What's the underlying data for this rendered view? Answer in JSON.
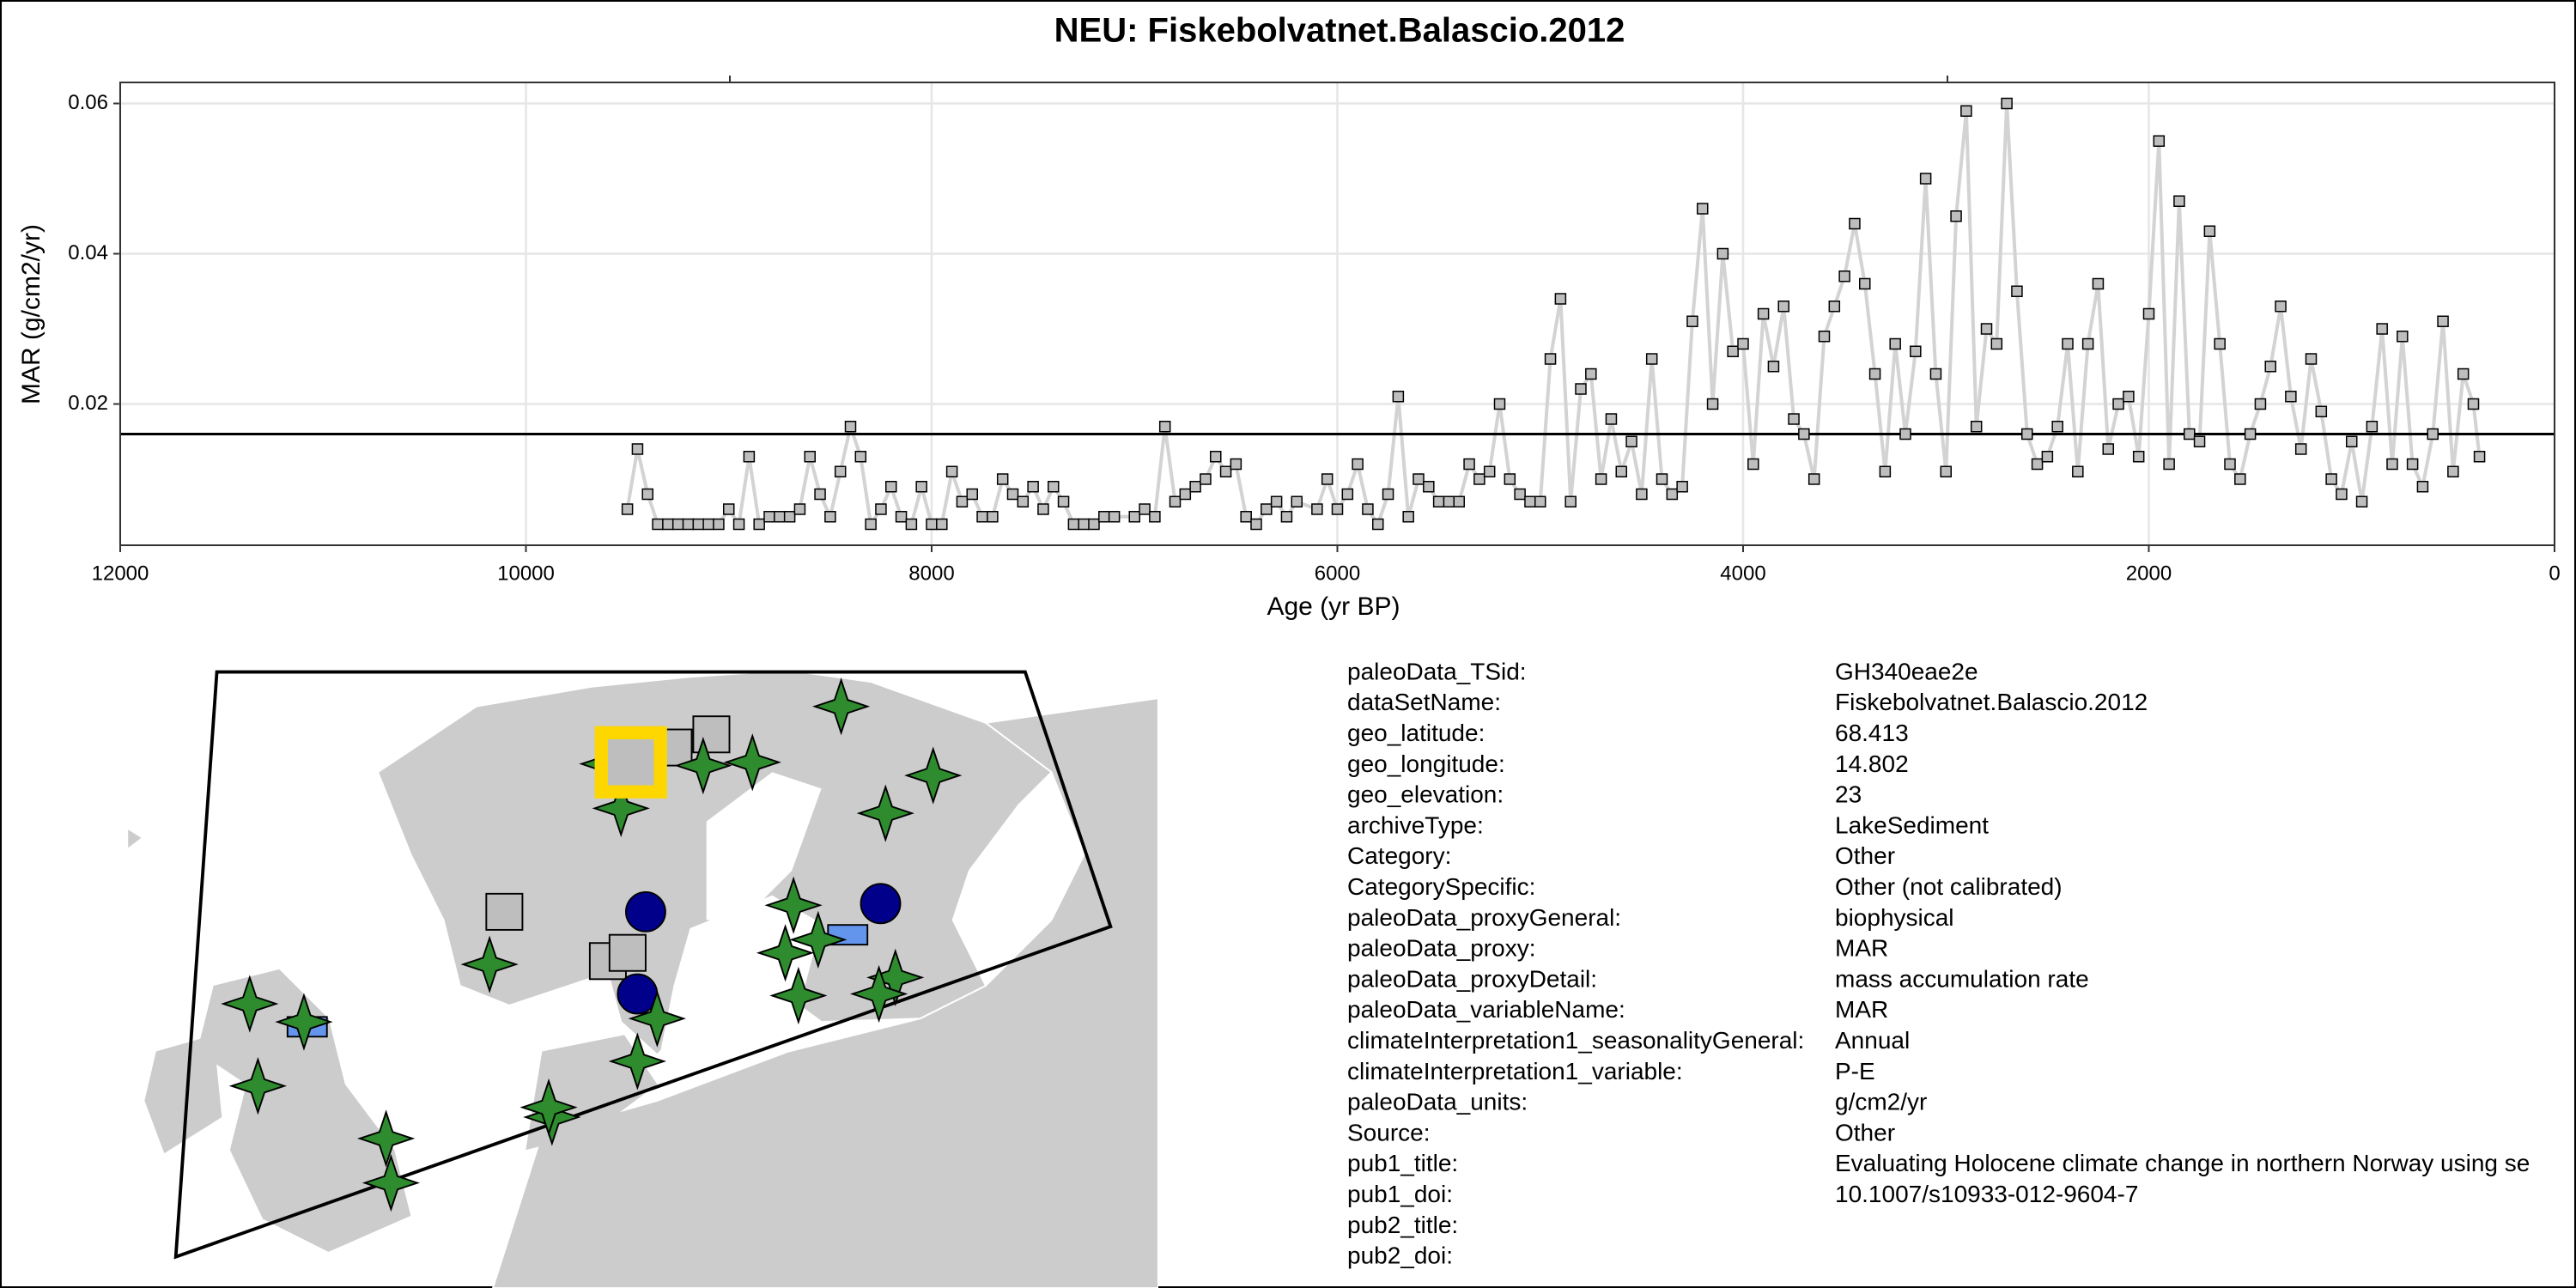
{
  "chart_data": {
    "type": "line",
    "title": "NEU: Fiskebolvatnet.Balascio.2012",
    "x_label": "Age (yr BP)",
    "y_label": "MAR (g/cm2/yr)",
    "xlim": [
      12000,
      0
    ],
    "xticks": [
      12000,
      10000,
      8000,
      6000,
      4000,
      2000,
      0
    ],
    "ylim": [
      0.0012,
      0.0628
    ],
    "yticks": [
      0.02,
      0.04,
      0.06
    ],
    "grid": true,
    "color": "#d3d3d3",
    "marker_color": "#bebebe",
    "hline": 0.016,
    "x": [
      9500,
      9450,
      9400,
      9350,
      9300,
      9250,
      9200,
      9150,
      9100,
      9050,
      9000,
      8950,
      8900,
      8850,
      8800,
      8750,
      8700,
      8650,
      8600,
      8550,
      8500,
      8450,
      8400,
      8350,
      8300,
      8250,
      8200,
      8150,
      8100,
      8050,
      8000,
      7950,
      7900,
      7850,
      7800,
      7750,
      7700,
      7650,
      7600,
      7550,
      7500,
      7450,
      7400,
      7350,
      7300,
      7250,
      7200,
      7150,
      7100,
      7000,
      6950,
      6900,
      6850,
      6800,
      6750,
      6700,
      6650,
      6600,
      6550,
      6500,
      6450,
      6400,
      6350,
      6300,
      6250,
      6200,
      6100,
      6050,
      6000,
      5950,
      5900,
      5850,
      5800,
      5750,
      5700,
      5650,
      5600,
      5550,
      5500,
      5450,
      5400,
      5350,
      5300,
      5250,
      5200,
      5150,
      5100,
      5050,
      5000,
      4950,
      4900,
      4850,
      4800,
      4750,
      4700,
      4650,
      4600,
      4550,
      4500,
      4450,
      4400,
      4350,
      4300,
      4250,
      4200,
      4150,
      4100,
      4050,
      4000,
      3950,
      3900,
      3850,
      3800,
      3750,
      3700,
      3650,
      3600,
      3550,
      3500,
      3450,
      3400,
      3350,
      3300,
      3250,
      3200,
      3150,
      3100,
      3050,
      3000,
      2950,
      2900,
      2850,
      2800,
      2750,
      2700,
      2650,
      2600,
      2550,
      2500,
      2450,
      2400,
      2350,
      2300,
      2250,
      2200,
      2150,
      2100,
      2050,
      2000,
      1950,
      1900,
      1850,
      1800,
      1750,
      1700,
      1650,
      1600,
      1550,
      1500,
      1450,
      1400,
      1350,
      1300,
      1250,
      1200,
      1150,
      1100,
      1050,
      1000,
      950,
      900,
      850,
      800,
      750,
      700,
      650,
      600,
      550,
      500,
      450,
      400,
      370
    ],
    "values": [
      0.006,
      0.014,
      0.008,
      0.004,
      0.004,
      0.004,
      0.004,
      0.004,
      0.004,
      0.004,
      0.006,
      0.004,
      0.013,
      0.004,
      0.005,
      0.005,
      0.005,
      0.006,
      0.013,
      0.008,
      0.005,
      0.011,
      0.017,
      0.013,
      0.004,
      0.006,
      0.009,
      0.005,
      0.004,
      0.009,
      0.004,
      0.004,
      0.011,
      0.007,
      0.008,
      0.005,
      0.005,
      0.01,
      0.008,
      0.007,
      0.009,
      0.006,
      0.009,
      0.007,
      0.004,
      0.004,
      0.004,
      0.005,
      0.005,
      0.005,
      0.006,
      0.005,
      0.017,
      0.007,
      0.008,
      0.009,
      0.01,
      0.013,
      0.011,
      0.012,
      0.005,
      0.004,
      0.006,
      0.007,
      0.005,
      0.007,
      0.006,
      0.01,
      0.006,
      0.008,
      0.012,
      0.006,
      0.004,
      0.008,
      0.021,
      0.005,
      0.01,
      0.009,
      0.007,
      0.007,
      0.007,
      0.012,
      0.01,
      0.011,
      0.02,
      0.01,
      0.008,
      0.007,
      0.007,
      0.026,
      0.034,
      0.007,
      0.022,
      0.024,
      0.01,
      0.018,
      0.011,
      0.015,
      0.008,
      0.026,
      0.01,
      0.008,
      0.009,
      0.031,
      0.046,
      0.02,
      0.04,
      0.027,
      0.028,
      0.012,
      0.032,
      0.025,
      0.033,
      0.018,
      0.016,
      0.01,
      0.029,
      0.033,
      0.037,
      0.044,
      0.036,
      0.024,
      0.011,
      0.028,
      0.016,
      0.027,
      0.05,
      0.024,
      0.011,
      0.045,
      0.059,
      0.017,
      0.03,
      0.028,
      0.06,
      0.035,
      0.016,
      0.012,
      0.013,
      0.017,
      0.028,
      0.011,
      0.028,
      0.036,
      0.014,
      0.02,
      0.021,
      0.013,
      0.032,
      0.055,
      0.012,
      0.047,
      0.016,
      0.015,
      0.043,
      0.028,
      0.012,
      0.01,
      0.016,
      0.02,
      0.025,
      0.033,
      0.021,
      0.014,
      0.026,
      0.019,
      0.01,
      0.008,
      0.015,
      0.007,
      0.017,
      0.03,
      0.012,
      0.029,
      0.012,
      0.009,
      0.016,
      0.031,
      0.011,
      0.024,
      0.02,
      0.013
    ]
  },
  "metadata": {
    "rows": [
      {
        "key": "paleoData_TSid:",
        "value": "GH340eae2e"
      },
      {
        "key": "dataSetName:",
        "value": "Fiskebolvatnet.Balascio.2012"
      },
      {
        "key": "geo_latitude:",
        "value": "68.413"
      },
      {
        "key": "geo_longitude:",
        "value": "14.802"
      },
      {
        "key": "geo_elevation:",
        "value": "23"
      },
      {
        "key": "archiveType:",
        "value": "LakeSediment"
      },
      {
        "key": "Category:",
        "value": "Other"
      },
      {
        "key": "CategorySpecific:",
        "value": "Other (not calibrated)"
      },
      {
        "key": "paleoData_proxyGeneral:",
        "value": "biophysical"
      },
      {
        "key": "paleoData_proxy:",
        "value": "MAR"
      },
      {
        "key": "paleoData_proxyDetail:",
        "value": "mass accumulation rate"
      },
      {
        "key": "paleoData_variableName:",
        "value": "MAR"
      },
      {
        "key": "climateInterpretation1_seasonalityGeneral:",
        "value": "Annual"
      },
      {
        "key": "climateInterpretation1_variable:",
        "value": "P-E"
      },
      {
        "key": "paleoData_units:",
        "value": "g/cm2/yr"
      },
      {
        "key": "Source:",
        "value": "Other"
      },
      {
        "key": "pub1_title:",
        "value": "Evaluating Holocene climate change in northern Norway using se"
      },
      {
        "key": "pub1_doi:",
        "value": "10.1007/s10933-012-9604-7"
      },
      {
        "key": "pub2_title:"
      },
      {
        "key": "pub2_doi:"
      }
    ]
  }
}
